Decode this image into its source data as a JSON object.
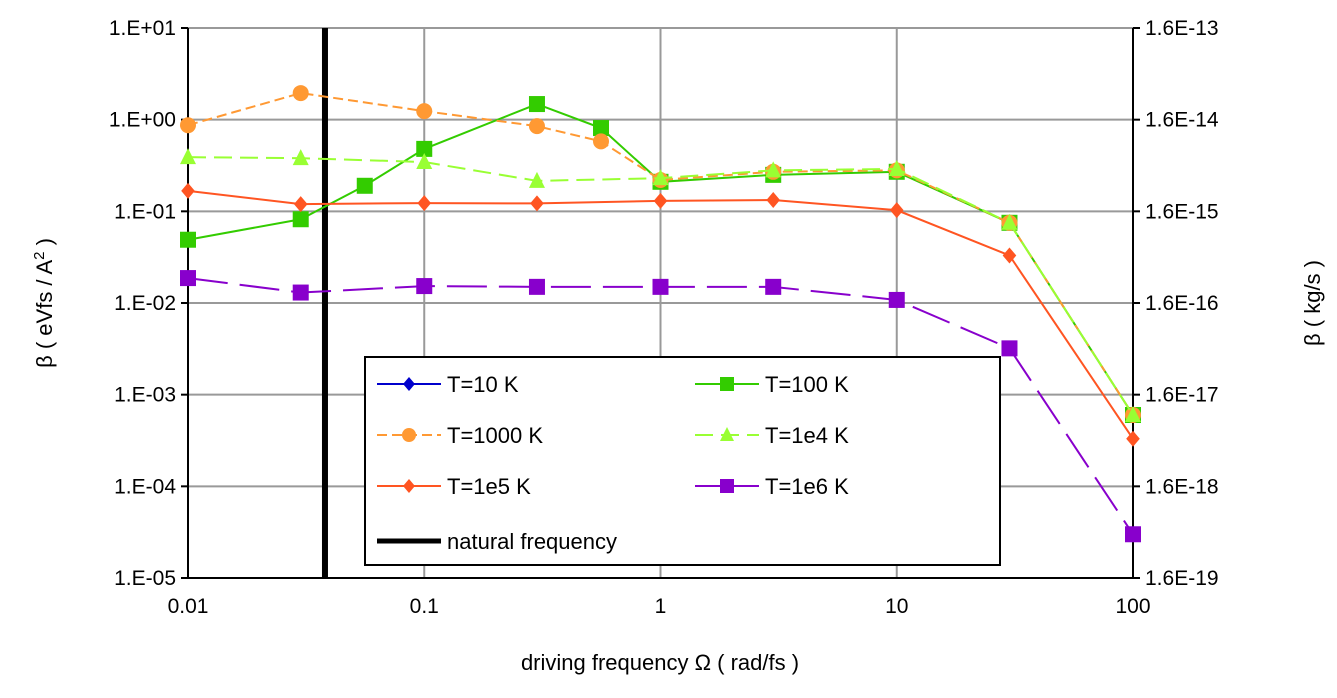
{
  "chart_data": {
    "type": "line",
    "title": "",
    "xlabel": "driving frequency Ω ( rad/fs )",
    "ylabel": "β ( eVfs / A",
    "ylabel_sup": "2",
    "ylabel_close": " )",
    "y2label": "β ( kg/s )",
    "xscale": "log",
    "yscale": "log",
    "xlim": [
      0.01,
      100
    ],
    "ylim": [
      1e-05,
      10
    ],
    "y2lim": [
      1.6e-19,
      1.6e-13
    ],
    "grid": true,
    "legend_placement": "bottom-center",
    "x_ticks": [
      "0.01",
      "0.1",
      "1",
      "10",
      "100"
    ],
    "y_ticks": [
      "1.E-05",
      "1.E-04",
      "1.E-03",
      "1.E-02",
      "1.E-01",
      "1.E+00",
      "1.E+01"
    ],
    "y2_ticks": [
      "1.6E-19",
      "1.6E-18",
      "1.6E-17",
      "1.6E-16",
      "1.6E-15",
      "1.6E-14",
      "1.6E-13"
    ],
    "series": [
      {
        "name": "T=10 K",
        "color": "#0000cc",
        "marker": "diamond",
        "dash": "",
        "x": [],
        "values": []
      },
      {
        "name": "T=100 K",
        "color": "#33cc00",
        "marker": "square",
        "dash": "",
        "x": [
          0.01,
          0.03,
          0.056,
          0.1,
          0.3,
          0.56,
          1,
          3,
          10,
          30,
          100
        ],
        "values": [
          0.049,
          0.082,
          0.19,
          0.48,
          1.48,
          0.81,
          0.21,
          0.25,
          0.27,
          0.075,
          0.0006
        ]
      },
      {
        "name": "T=1000 K",
        "color": "#ff9933",
        "marker": "circle",
        "dash": "10,5",
        "x": [
          0.01,
          0.03,
          0.1,
          0.3,
          0.56,
          1,
          3,
          10,
          30,
          100
        ],
        "values": [
          0.87,
          1.95,
          1.24,
          0.85,
          0.58,
          0.22,
          0.27,
          0.28,
          0.075,
          0.0006
        ]
      },
      {
        "name": "T=1e4 K",
        "color": "#99ff33",
        "marker": "triangle",
        "dash": "18,8",
        "x": [
          0.01,
          0.03,
          0.1,
          0.3,
          1,
          3,
          10,
          30,
          100
        ],
        "values": [
          0.39,
          0.38,
          0.345,
          0.215,
          0.23,
          0.28,
          0.29,
          0.075,
          0.0006
        ]
      },
      {
        "name": "T=1e5 K",
        "color": "#ff5522",
        "marker": "diamond",
        "dash": "",
        "x": [
          0.01,
          0.03,
          0.1,
          0.3,
          1,
          3,
          10,
          30,
          100
        ],
        "values": [
          0.167,
          0.12,
          0.123,
          0.122,
          0.13,
          0.133,
          0.103,
          0.033,
          0.00033
        ]
      },
      {
        "name": "T=1e6 K",
        "color": "#8800cc",
        "marker": "square",
        "dash": "40,12",
        "x": [
          0.01,
          0.03,
          0.1,
          0.3,
          1,
          3,
          10,
          30,
          100
        ],
        "values": [
          0.0187,
          0.013,
          0.0153,
          0.015,
          0.015,
          0.015,
          0.0108,
          0.0032,
          3e-05
        ]
      }
    ],
    "vertical_line": {
      "name": "natural frequency",
      "x": 0.038,
      "color": "#000000"
    }
  }
}
